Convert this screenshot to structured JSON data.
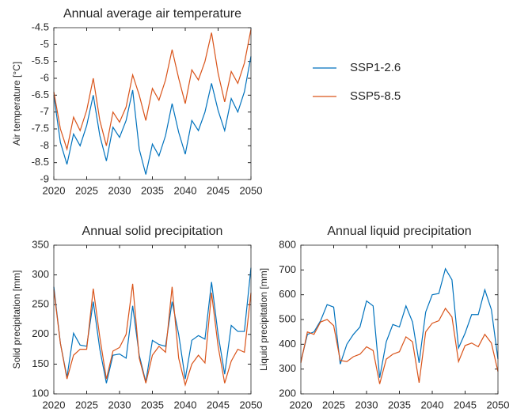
{
  "chart_data": [
    {
      "type": "line",
      "title": "Annual average air temperature",
      "y_label": "Air temperature [°C]",
      "x": [
        2020,
        2021,
        2022,
        2023,
        2024,
        2025,
        2026,
        2027,
        2028,
        2029,
        2030,
        2031,
        2032,
        2033,
        2034,
        2035,
        2036,
        2037,
        2038,
        2039,
        2040,
        2041,
        2042,
        2043,
        2044,
        2045,
        2046,
        2047,
        2048,
        2049,
        2050
      ],
      "xlim": [
        2020,
        2050
      ],
      "xticks": [
        2020,
        2025,
        2030,
        2035,
        2040,
        2045,
        2050
      ],
      "ylim": [
        -9,
        -4.5
      ],
      "yticks": [
        -9,
        -8.5,
        -8,
        -7.5,
        -7,
        -6.5,
        -6,
        -5.5,
        -5,
        -4.5
      ],
      "series": [
        {
          "name": "SSP1-2.6",
          "color": "#0072bd",
          "values": [
            -6.5,
            -7.9,
            -8.55,
            -7.65,
            -8.0,
            -7.4,
            -6.5,
            -7.7,
            -8.45,
            -7.45,
            -7.75,
            -7.25,
            -6.35,
            -8.1,
            -8.85,
            -7.95,
            -8.3,
            -7.7,
            -6.75,
            -7.6,
            -8.25,
            -7.25,
            -7.55,
            -7.0,
            -6.15,
            -6.95,
            -7.55,
            -6.6,
            -7.0,
            -6.4,
            -5.35
          ]
        },
        {
          "name": "SSP5-8.5",
          "color": "#d95319",
          "values": [
            -6.4,
            -7.5,
            -8.1,
            -7.15,
            -7.55,
            -6.95,
            -6.0,
            -7.25,
            -8.0,
            -7.0,
            -7.3,
            -6.85,
            -5.9,
            -6.5,
            -7.25,
            -6.3,
            -6.65,
            -6.05,
            -5.15,
            -6.0,
            -6.75,
            -5.75,
            -6.05,
            -5.5,
            -4.65,
            -5.85,
            -6.7,
            -5.8,
            -6.15,
            -5.55,
            -4.55
          ]
        }
      ]
    },
    {
      "type": "line",
      "title": "Annual solid precipitation",
      "y_label": "Solid precipitation [mm]",
      "x": [
        2020,
        2021,
        2022,
        2023,
        2024,
        2025,
        2026,
        2027,
        2028,
        2029,
        2030,
        2031,
        2032,
        2033,
        2034,
        2035,
        2036,
        2037,
        2038,
        2039,
        2040,
        2041,
        2042,
        2043,
        2044,
        2045,
        2046,
        2047,
        2048,
        2049,
        2050
      ],
      "xlim": [
        2020,
        2050
      ],
      "xticks": [
        2020,
        2025,
        2030,
        2035,
        2040,
        2045,
        2050
      ],
      "ylim": [
        100,
        350
      ],
      "yticks": [
        100,
        150,
        200,
        250,
        300,
        350
      ],
      "series": [
        {
          "color": "#0072bd",
          "values": [
            280,
            185,
            128,
            202,
            182,
            180,
            255,
            175,
            118,
            165,
            167,
            160,
            248,
            165,
            120,
            190,
            183,
            180,
            255,
            200,
            125,
            190,
            198,
            192,
            288,
            200,
            133,
            215,
            205,
            205,
            312
          ]
        },
        {
          "color": "#d95319",
          "values": [
            275,
            185,
            125,
            165,
            175,
            175,
            277,
            195,
            125,
            172,
            178,
            200,
            285,
            160,
            118,
            165,
            180,
            170,
            280,
            160,
            115,
            150,
            165,
            152,
            270,
            180,
            118,
            155,
            175,
            170,
            270
          ]
        }
      ]
    },
    {
      "type": "line",
      "title": "Annual liquid precipitation",
      "y_label": "Liquid precipitation [mm]",
      "x": [
        2020,
        2021,
        2022,
        2023,
        2024,
        2025,
        2026,
        2027,
        2028,
        2029,
        2030,
        2031,
        2032,
        2033,
        2034,
        2035,
        2036,
        2037,
        2038,
        2039,
        2040,
        2041,
        2042,
        2043,
        2044,
        2045,
        2046,
        2047,
        2048,
        2049,
        2050
      ],
      "xlim": [
        2020,
        2050
      ],
      "xticks": [
        2020,
        2025,
        2030,
        2035,
        2040,
        2045,
        2050
      ],
      "ylim": [
        200,
        800
      ],
      "yticks": [
        200,
        300,
        400,
        500,
        600,
        700,
        800
      ],
      "series": [
        {
          "color": "#0072bd",
          "values": [
            330,
            440,
            450,
            495,
            560,
            550,
            320,
            400,
            440,
            470,
            575,
            555,
            265,
            410,
            480,
            470,
            555,
            490,
            325,
            530,
            600,
            605,
            705,
            660,
            385,
            445,
            520,
            520,
            620,
            540,
            340
          ]
        },
        {
          "color": "#d95319",
          "values": [
            325,
            450,
            440,
            490,
            500,
            475,
            335,
            330,
            350,
            360,
            390,
            375,
            240,
            340,
            360,
            370,
            430,
            410,
            245,
            450,
            485,
            495,
            545,
            510,
            330,
            395,
            405,
            390,
            440,
            405,
            290
          ]
        }
      ]
    }
  ]
}
